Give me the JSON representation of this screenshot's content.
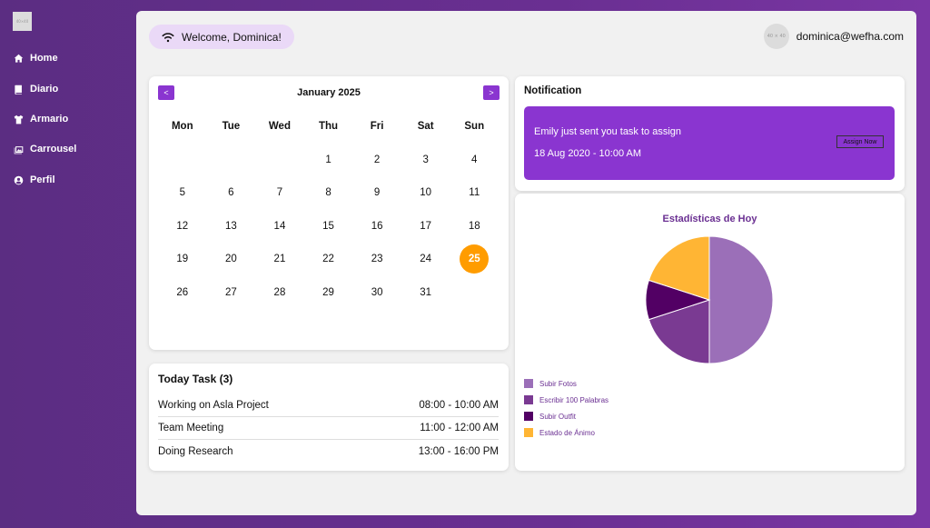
{
  "logo": {
    "text": "40×40"
  },
  "sidebar": {
    "items": [
      {
        "label": "Home",
        "icon": "home-icon"
      },
      {
        "label": "Diario",
        "icon": "book-icon"
      },
      {
        "label": "Armario",
        "icon": "shirt-icon"
      },
      {
        "label": "Carrousel",
        "icon": "images-icon"
      },
      {
        "label": "Perfil",
        "icon": "user-circle-icon"
      }
    ]
  },
  "header": {
    "welcome": "Welcome, Dominica!",
    "avatar_text": "40 × 40",
    "email": "dominica@wefha.com"
  },
  "calendar": {
    "title": "January 2025",
    "prev_label": "<",
    "next_label": ">",
    "weekdays": [
      "Mon",
      "Tue",
      "Wed",
      "Thu",
      "Fri",
      "Sat",
      "Sun"
    ],
    "weeks": [
      [
        "",
        "",
        "",
        "1",
        "2",
        "3",
        "4"
      ],
      [
        "5",
        "6",
        "7",
        "8",
        "9",
        "10",
        "11"
      ],
      [
        "12",
        "13",
        "14",
        "15",
        "16",
        "17",
        "18"
      ],
      [
        "19",
        "20",
        "21",
        "22",
        "23",
        "24",
        "25"
      ],
      [
        "26",
        "27",
        "28",
        "29",
        "30",
        "31",
        ""
      ]
    ],
    "today": "25",
    "today_color": "#ff9c00"
  },
  "tasks": {
    "title": "Today Task (3)",
    "items": [
      {
        "name": "Working on Asla Project",
        "time": "08:00 - 10:00 AM"
      },
      {
        "name": "Team Meeting",
        "time": "11:00 - 12:00 AM"
      },
      {
        "name": "Doing Research",
        "time": "13:00 - 16:00 PM"
      }
    ]
  },
  "notification": {
    "title": "Notification",
    "message": "Emily just sent you task to assign",
    "date": "18 Aug 2020 - 10:00 AM",
    "button": "Assign Now",
    "color": "#8a35d0"
  },
  "stats": {
    "title": "Estadísticas de Hoy"
  },
  "chart_data": {
    "type": "pie",
    "title": "Estadísticas de Hoy",
    "labels": [
      "Subir Fotos",
      "Escribir 100 Palabras",
      "Subir Outfit",
      "Estado de Ánimo"
    ],
    "values": [
      50,
      20,
      10,
      20
    ],
    "colors": [
      "#9b6fb8",
      "#7a3a92",
      "#520064",
      "#ffb534"
    ],
    "legend": "bottom-left"
  }
}
